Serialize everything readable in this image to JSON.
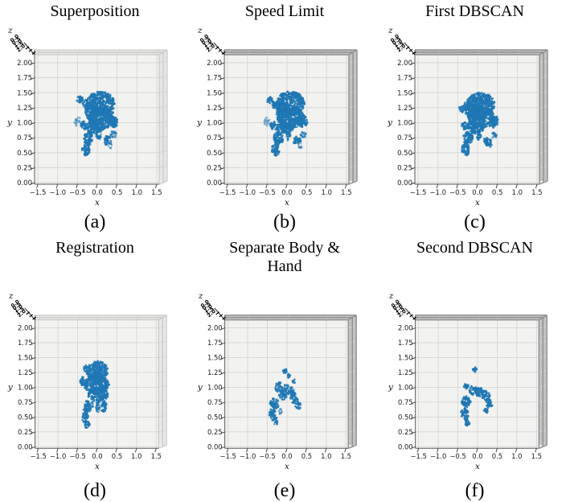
{
  "page": {
    "background": "#ffffff"
  },
  "axes": {
    "xlabel": "x",
    "ylabel": "y",
    "zlabel": "z",
    "x_tick_labels": [
      "−1.5",
      "−1.0",
      "−0.5",
      "0.0",
      "0.5",
      "1.0",
      "1.5"
    ],
    "x_tick_values": [
      -1.5,
      -1.0,
      -0.5,
      0.0,
      0.5,
      1.0,
      1.5
    ],
    "y_tick_labels": [
      "0.00",
      "0.25",
      "0.50",
      "0.75",
      "1.00",
      "1.25",
      "1.50",
      "1.75",
      "2.00"
    ],
    "y_tick_values": [
      0,
      0.25,
      0.5,
      0.75,
      1.0,
      1.25,
      1.5,
      1.75,
      2.0
    ],
    "z_tick_labels_overlapped": [
      "0.0",
      "0.5",
      "1.0",
      "1.5",
      "2.0"
    ],
    "xlim": [
      -1.58,
      1.56
    ],
    "ylim": [
      0,
      2.16
    ],
    "grid": true
  },
  "style": {
    "point_color": "#1f77b4",
    "pane_color": "#f2f2f0",
    "grid_color": "#d6d6d4",
    "spine_color": "#5a5a5a",
    "band_fill_light": "#e6e6e4",
    "band_fill_dark": "#c2c2c2",
    "band_line_light": "#c3c3c1",
    "band_line_dark": "#8f8f8f",
    "tick_text_color": "#1a1a1a"
  },
  "chart_data": [
    {
      "label": "(a)",
      "title": "Superposition",
      "type": "scatter",
      "projection": "3d-front-view",
      "frame_shade": "light",
      "seed": 101,
      "xlabel": "x",
      "ylabel": "y",
      "zlabel": "z",
      "clusters": [
        {
          "x": 0.08,
          "y": 1.32,
          "rx": 0.36,
          "ry": 0.2,
          "density": 1
        },
        {
          "x": 0.1,
          "y": 1.08,
          "rx": 0.34,
          "ry": 0.18,
          "density": 1
        },
        {
          "x": -0.12,
          "y": 1.18,
          "rx": 0.18,
          "ry": 0.14,
          "density": 1
        },
        {
          "x": 0.4,
          "y": 1.02,
          "rx": 0.12,
          "ry": 0.1,
          "density": 0.9
        },
        {
          "x": -0.27,
          "y": 1.3,
          "rx": 0.1,
          "ry": 0.08,
          "density": 0.9
        },
        {
          "x": -0.44,
          "y": 1.38,
          "rx": 0.08,
          "ry": 0.06,
          "density": 0.85
        },
        {
          "x": -0.5,
          "y": 1.02,
          "rx": 0.09,
          "ry": 0.08,
          "density": 0.5,
          "opacity": 0.45
        },
        {
          "x": -0.33,
          "y": 0.95,
          "rx": 0.09,
          "ry": 0.07,
          "density": 0.85
        },
        {
          "x": -0.05,
          "y": 0.92,
          "rx": 0.22,
          "ry": 0.1,
          "density": 1
        },
        {
          "x": -0.22,
          "y": 0.74,
          "rx": 0.12,
          "ry": 0.11,
          "density": 0.95
        },
        {
          "x": -0.29,
          "y": 0.55,
          "rx": 0.1,
          "ry": 0.1,
          "density": 0.95
        },
        {
          "x": 0.03,
          "y": 0.79,
          "rx": 0.06,
          "ry": 0.08,
          "density": 0.9
        },
        {
          "x": 0.26,
          "y": 0.7,
          "rx": 0.09,
          "ry": 0.08,
          "density": 0.9
        },
        {
          "x": 0.41,
          "y": 0.8,
          "rx": 0.07,
          "ry": 0.06,
          "density": 0.7,
          "opacity": 0.75
        },
        {
          "x": 0.33,
          "y": 0.62,
          "rx": 0.05,
          "ry": 0.05,
          "density": 0.6,
          "opacity": 0.6
        }
      ]
    },
    {
      "label": "(b)",
      "title": "Speed Limit",
      "type": "scatter",
      "projection": "3d-front-view",
      "frame_shade": "dark",
      "seed": 202,
      "xlabel": "x",
      "ylabel": "y",
      "zlabel": "z",
      "clusters": [
        {
          "x": 0.08,
          "y": 1.32,
          "rx": 0.36,
          "ry": 0.2,
          "density": 1
        },
        {
          "x": 0.1,
          "y": 1.08,
          "rx": 0.34,
          "ry": 0.18,
          "density": 1
        },
        {
          "x": -0.12,
          "y": 1.18,
          "rx": 0.18,
          "ry": 0.14,
          "density": 1
        },
        {
          "x": 0.4,
          "y": 1.02,
          "rx": 0.12,
          "ry": 0.1,
          "density": 0.9
        },
        {
          "x": -0.27,
          "y": 1.3,
          "rx": 0.1,
          "ry": 0.08,
          "density": 0.9
        },
        {
          "x": -0.44,
          "y": 1.38,
          "rx": 0.08,
          "ry": 0.06,
          "density": 0.85
        },
        {
          "x": -0.5,
          "y": 1.02,
          "rx": 0.09,
          "ry": 0.08,
          "density": 0.5,
          "opacity": 0.45
        },
        {
          "x": -0.33,
          "y": 0.95,
          "rx": 0.09,
          "ry": 0.07,
          "density": 0.85
        },
        {
          "x": -0.05,
          "y": 0.92,
          "rx": 0.22,
          "ry": 0.1,
          "density": 1
        },
        {
          "x": -0.22,
          "y": 0.74,
          "rx": 0.12,
          "ry": 0.11,
          "density": 0.95
        },
        {
          "x": -0.29,
          "y": 0.55,
          "rx": 0.1,
          "ry": 0.1,
          "density": 0.95
        },
        {
          "x": 0.03,
          "y": 0.79,
          "rx": 0.06,
          "ry": 0.08,
          "density": 0.9
        },
        {
          "x": 0.26,
          "y": 0.7,
          "rx": 0.09,
          "ry": 0.08,
          "density": 0.9
        },
        {
          "x": 0.41,
          "y": 0.8,
          "rx": 0.07,
          "ry": 0.06,
          "density": 0.7,
          "opacity": 0.75
        },
        {
          "x": 0.33,
          "y": 0.62,
          "rx": 0.05,
          "ry": 0.05,
          "density": 0.6,
          "opacity": 0.6
        }
      ]
    },
    {
      "label": "(c)",
      "title": "First DBSCAN",
      "type": "scatter",
      "projection": "3d-front-view",
      "frame_shade": "dark",
      "seed": 303,
      "xlabel": "x",
      "ylabel": "y",
      "zlabel": "z",
      "clusters": [
        {
          "x": 0.08,
          "y": 1.3,
          "rx": 0.36,
          "ry": 0.2,
          "density": 1
        },
        {
          "x": 0.1,
          "y": 1.08,
          "rx": 0.35,
          "ry": 0.18,
          "density": 1
        },
        {
          "x": -0.12,
          "y": 1.18,
          "rx": 0.18,
          "ry": 0.14,
          "density": 1
        },
        {
          "x": 0.42,
          "y": 1.02,
          "rx": 0.11,
          "ry": 0.1,
          "density": 0.9
        },
        {
          "x": -0.27,
          "y": 1.28,
          "rx": 0.1,
          "ry": 0.08,
          "density": 0.9
        },
        {
          "x": -0.42,
          "y": 1.22,
          "rx": 0.07,
          "ry": 0.06,
          "density": 0.8
        },
        {
          "x": -0.33,
          "y": 0.95,
          "rx": 0.09,
          "ry": 0.07,
          "density": 0.85
        },
        {
          "x": -0.05,
          "y": 0.92,
          "rx": 0.22,
          "ry": 0.1,
          "density": 1
        },
        {
          "x": -0.24,
          "y": 0.74,
          "rx": 0.12,
          "ry": 0.11,
          "density": 0.95
        },
        {
          "x": -0.3,
          "y": 0.55,
          "rx": 0.1,
          "ry": 0.1,
          "density": 0.95
        },
        {
          "x": 0.03,
          "y": 0.79,
          "rx": 0.06,
          "ry": 0.08,
          "density": 0.9
        },
        {
          "x": 0.26,
          "y": 0.7,
          "rx": 0.09,
          "ry": 0.08,
          "density": 0.9
        },
        {
          "x": 0.42,
          "y": 0.8,
          "rx": 0.07,
          "ry": 0.06,
          "density": 0.7,
          "opacity": 0.75
        },
        {
          "x": 0.33,
          "y": 0.62,
          "rx": 0.05,
          "ry": 0.05,
          "density": 0.6,
          "opacity": 0.6
        }
      ]
    },
    {
      "label": "(d)",
      "title": "Registration",
      "type": "scatter",
      "projection": "3d-front-view",
      "frame_shade": "light",
      "seed": 404,
      "xlabel": "x",
      "ylabel": "y",
      "zlabel": "z",
      "clusters": [
        {
          "x": 0.0,
          "y": 1.27,
          "rx": 0.27,
          "ry": 0.17,
          "density": 1
        },
        {
          "x": -0.02,
          "y": 1.05,
          "rx": 0.32,
          "ry": 0.16,
          "density": 1
        },
        {
          "x": 0.02,
          "y": 0.88,
          "rx": 0.26,
          "ry": 0.12,
          "density": 1
        },
        {
          "x": -0.38,
          "y": 1.1,
          "rx": 0.07,
          "ry": 0.07,
          "density": 0.85
        },
        {
          "x": -0.3,
          "y": 1.32,
          "rx": 0.05,
          "ry": 0.05,
          "density": 0.8
        },
        {
          "x": 0.17,
          "y": 0.68,
          "rx": 0.07,
          "ry": 0.1,
          "density": 0.9
        },
        {
          "x": 0.02,
          "y": 0.67,
          "rx": 0.05,
          "ry": 0.09,
          "density": 0.9
        },
        {
          "x": -0.22,
          "y": 0.7,
          "rx": 0.11,
          "ry": 0.1,
          "density": 0.95
        },
        {
          "x": -0.31,
          "y": 0.52,
          "rx": 0.09,
          "ry": 0.11,
          "density": 0.95
        },
        {
          "x": -0.26,
          "y": 0.37,
          "rx": 0.07,
          "ry": 0.06,
          "density": 0.9
        }
      ]
    },
    {
      "label": "(e)",
      "title": "Separate Body & Hand",
      "type": "scatter",
      "projection": "3d-front-view",
      "frame_shade": "dark",
      "seed": 505,
      "xlabel": "x",
      "ylabel": "y",
      "zlabel": "z",
      "clusters": [
        {
          "x": -0.06,
          "y": 1.27,
          "rx": 0.06,
          "ry": 0.05,
          "density": 0.8
        },
        {
          "x": 0.05,
          "y": 1.2,
          "rx": 0.04,
          "ry": 0.04,
          "density": 0.7
        },
        {
          "x": 0.17,
          "y": 1.1,
          "rx": 0.05,
          "ry": 0.04,
          "density": 0.7
        },
        {
          "x": -0.2,
          "y": 1.0,
          "rx": 0.09,
          "ry": 0.09,
          "density": 0.8
        },
        {
          "x": -0.1,
          "y": 0.88,
          "rx": 0.1,
          "ry": 0.09,
          "density": 0.8
        },
        {
          "x": -0.02,
          "y": 1.0,
          "rx": 0.05,
          "ry": 0.07,
          "density": 0.7
        },
        {
          "x": 0.12,
          "y": 0.9,
          "rx": 0.09,
          "ry": 0.1,
          "density": 0.8
        },
        {
          "x": 0.22,
          "y": 0.76,
          "rx": 0.08,
          "ry": 0.08,
          "density": 0.8
        },
        {
          "x": 0.3,
          "y": 0.68,
          "rx": 0.06,
          "ry": 0.06,
          "density": 0.7
        },
        {
          "x": -0.32,
          "y": 0.72,
          "rx": 0.11,
          "ry": 0.09,
          "density": 0.85
        },
        {
          "x": -0.38,
          "y": 0.56,
          "rx": 0.09,
          "ry": 0.08,
          "density": 0.85
        },
        {
          "x": -0.3,
          "y": 0.43,
          "rx": 0.07,
          "ry": 0.07,
          "density": 0.8
        },
        {
          "x": -0.18,
          "y": 0.6,
          "rx": 0.06,
          "ry": 0.05,
          "density": 0.5,
          "opacity": 0.7
        }
      ]
    },
    {
      "label": "(f)",
      "title": "Second DBSCAN",
      "type": "scatter",
      "projection": "3d-front-view",
      "frame_shade": "dark",
      "seed": 606,
      "xlabel": "x",
      "ylabel": "y",
      "zlabel": "z",
      "clusters": [
        {
          "x": -0.08,
          "y": 1.3,
          "rx": 0.06,
          "ry": 0.05,
          "density": 0.9
        },
        {
          "x": -0.28,
          "y": 1.02,
          "rx": 0.07,
          "ry": 0.06,
          "density": 0.85
        },
        {
          "x": -0.1,
          "y": 0.95,
          "rx": 0.11,
          "ry": 0.08,
          "density": 0.9
        },
        {
          "x": 0.05,
          "y": 0.92,
          "rx": 0.09,
          "ry": 0.08,
          "density": 0.9
        },
        {
          "x": 0.2,
          "y": 0.86,
          "rx": 0.11,
          "ry": 0.09,
          "density": 0.9
        },
        {
          "x": 0.3,
          "y": 0.72,
          "rx": 0.08,
          "ry": 0.08,
          "density": 0.85
        },
        {
          "x": 0.22,
          "y": 0.62,
          "rx": 0.06,
          "ry": 0.05,
          "density": 0.8
        },
        {
          "x": -0.28,
          "y": 0.76,
          "rx": 0.12,
          "ry": 0.1,
          "density": 0.9
        },
        {
          "x": -0.33,
          "y": 0.55,
          "rx": 0.1,
          "ry": 0.1,
          "density": 0.9
        },
        {
          "x": -0.27,
          "y": 0.4,
          "rx": 0.07,
          "ry": 0.06,
          "density": 0.85
        }
      ]
    }
  ]
}
